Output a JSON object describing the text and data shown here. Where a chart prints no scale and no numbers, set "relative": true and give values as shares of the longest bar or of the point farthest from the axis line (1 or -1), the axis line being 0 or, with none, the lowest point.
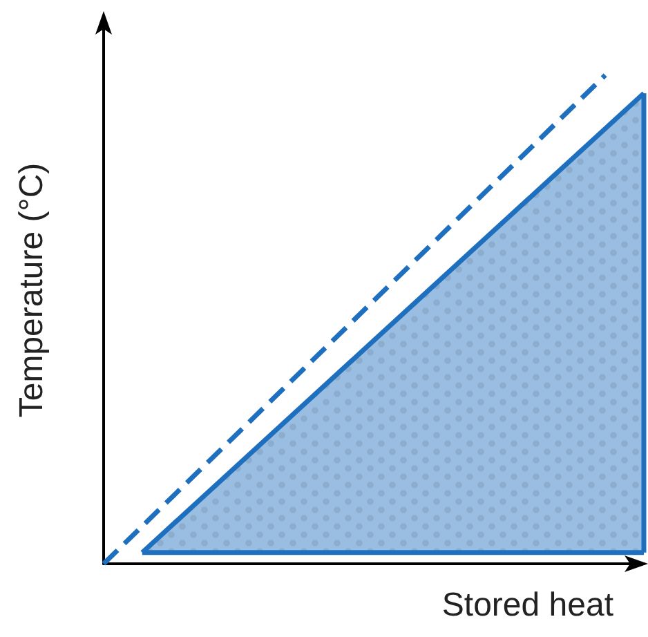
{
  "chart_data": {
    "type": "line",
    "xlabel": "Stored heat",
    "ylabel": "Temperature (°C)",
    "relative": true,
    "marker": "none",
    "categories": [
      null,
      null,
      null,
      null,
      null,
      null,
      null,
      null,
      null,
      null,
      null,
      null,
      null,
      null,
      null
    ],
    "series": [
      {
        "color": "#1f6fbf",
        "line_style": "dashed",
        "values": [
          0,
          null,
          null,
          null,
          null,
          null,
          null,
          null,
          null,
          null,
          null,
          null,
          null,
          1,
          null
        ]
      },
      {
        "type": "area",
        "color": "#1f6fbf",
        "line_style": "solid",
        "values": [
          null,
          0.023,
          null,
          null,
          null,
          null,
          null,
          null,
          null,
          null,
          null,
          null,
          null,
          null,
          0.963
        ]
      },
      {
        "type": "line",
        "color": "#1f6fbf",
        "line_style": "solid",
        "values": [
          null,
          0.023,
          null,
          null,
          null,
          null,
          null,
          null,
          null,
          null,
          null,
          null,
          null,
          null,
          0.023
        ]
      }
    ]
  }
}
